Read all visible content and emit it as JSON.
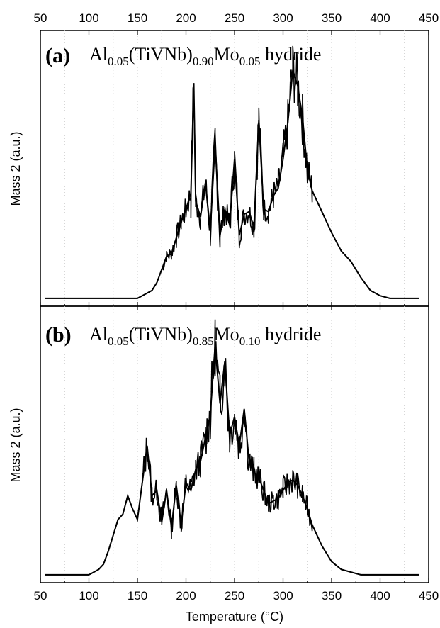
{
  "chart_data": [
    {
      "panel": "(a)",
      "type": "line",
      "title": "Al0.05(TiVNb)0.90Mo0.05 hydride",
      "title_parts": {
        "base": "Al",
        "s1": "0.05",
        "mid": "(TiVNb)",
        "s2": "0.90",
        "el": "Mo",
        "s3": "0.05",
        "tail": " hydride"
      },
      "ylabel": "Mass 2 (a.u.)",
      "xlim": [
        50,
        450
      ],
      "ylim": [
        0,
        1.05
      ],
      "x_ticks": [
        50,
        100,
        150,
        200,
        250,
        300,
        350,
        400,
        450
      ],
      "x_tick_labels": [
        "50",
        "100",
        "150",
        "200",
        "250",
        "300",
        "350",
        "400",
        "450"
      ],
      "grid": "vertical dotted",
      "color": "#000000",
      "series": [
        {
          "x": [
            55,
            150,
            155,
            160,
            165,
            170,
            175,
            180,
            185,
            190,
            195,
            200,
            205,
            208,
            210,
            215,
            220,
            225,
            230,
            235,
            240,
            245,
            250,
            255,
            260,
            265,
            270,
            275,
            280,
            285,
            290,
            295,
            300,
            305,
            310,
            315,
            320,
            325,
            330,
            340,
            350,
            360,
            370,
            380,
            390,
            400,
            410,
            420,
            440
          ],
          "y": [
            0.03,
            0.03,
            0.04,
            0.05,
            0.06,
            0.09,
            0.14,
            0.19,
            0.2,
            0.26,
            0.32,
            0.37,
            0.43,
            0.85,
            0.4,
            0.34,
            0.47,
            0.29,
            0.62,
            0.27,
            0.37,
            0.31,
            0.56,
            0.27,
            0.35,
            0.36,
            0.3,
            0.71,
            0.37,
            0.36,
            0.42,
            0.45,
            0.56,
            0.7,
            0.9,
            0.84,
            0.72,
            0.52,
            0.44,
            0.36,
            0.28,
            0.21,
            0.17,
            0.11,
            0.06,
            0.04,
            0.03,
            0.03,
            0.03
          ]
        }
      ]
    },
    {
      "panel": "(b)",
      "type": "line",
      "title": "Al0.05(TiVNb)0.85Mo0.10 hydride",
      "title_parts": {
        "base": "Al",
        "s1": "0.05",
        "mid": "(TiVNb)",
        "s2": "0.85",
        "el": "Mo",
        "s3": "0.10",
        "tail": " hydride"
      },
      "ylabel": "Mass 2 (a.u.)",
      "xlabel": "Temperature (°C)",
      "xlim": [
        50,
        450
      ],
      "ylim": [
        0,
        1.05
      ],
      "x_ticks": [
        50,
        100,
        150,
        200,
        250,
        300,
        350,
        400,
        450
      ],
      "x_tick_labels": [
        "50",
        "100",
        "150",
        "200",
        "250",
        "300",
        "350",
        "400",
        "450"
      ],
      "grid": "vertical dotted",
      "color": "#000000",
      "series": [
        {
          "x": [
            55,
            100,
            110,
            115,
            120,
            125,
            130,
            135,
            140,
            145,
            150,
            155,
            160,
            165,
            170,
            175,
            180,
            185,
            190,
            195,
            200,
            205,
            210,
            215,
            220,
            225,
            230,
            235,
            240,
            245,
            250,
            255,
            260,
            265,
            270,
            275,
            280,
            285,
            290,
            295,
            300,
            305,
            310,
            315,
            320,
            325,
            330,
            340,
            350,
            360,
            370,
            380,
            400,
            420,
            440
          ],
          "y": [
            0.03,
            0.03,
            0.05,
            0.07,
            0.12,
            0.18,
            0.24,
            0.26,
            0.33,
            0.28,
            0.24,
            0.38,
            0.52,
            0.33,
            0.35,
            0.23,
            0.35,
            0.21,
            0.37,
            0.22,
            0.38,
            0.35,
            0.43,
            0.46,
            0.55,
            0.64,
            0.9,
            0.68,
            0.84,
            0.56,
            0.63,
            0.52,
            0.66,
            0.46,
            0.42,
            0.4,
            0.35,
            0.3,
            0.31,
            0.32,
            0.35,
            0.38,
            0.39,
            0.37,
            0.33,
            0.28,
            0.22,
            0.14,
            0.08,
            0.05,
            0.04,
            0.03,
            0.03,
            0.03,
            0.03
          ]
        }
      ]
    }
  ]
}
